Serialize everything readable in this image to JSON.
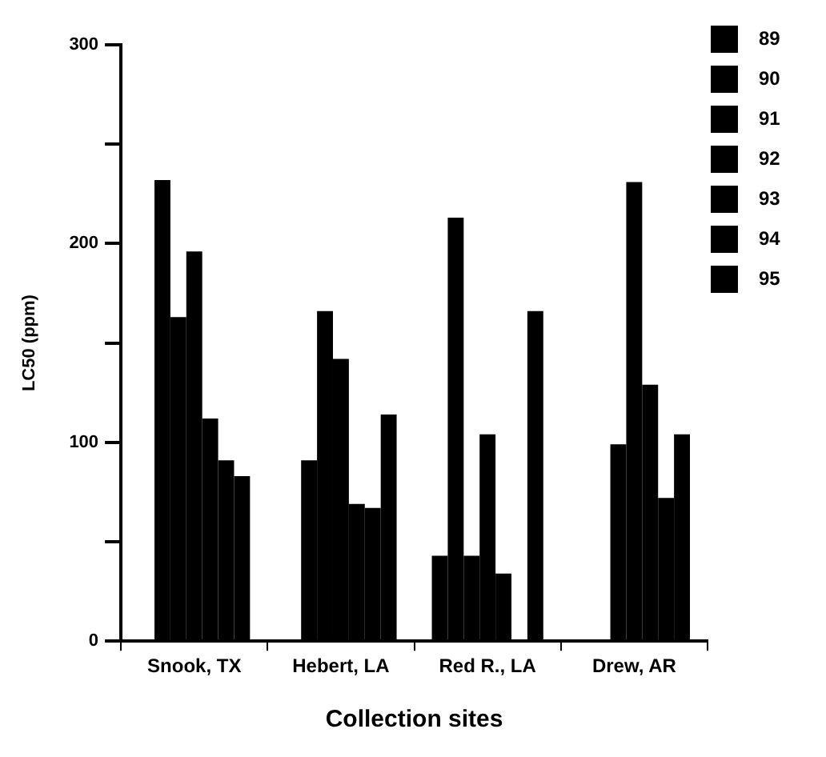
{
  "chart_data": {
    "type": "bar",
    "xlabel": "Collection sites",
    "ylabel": "LC50 (ppm)",
    "categories": [
      "Snook, TX",
      "Hebert, LA",
      "Red R., LA",
      "Drew, AR"
    ],
    "series": [
      {
        "name": "89",
        "color": "#000000",
        "values": [
          null,
          null,
          43,
          null
        ]
      },
      {
        "name": "90",
        "color": "#000000",
        "values": [
          232,
          91,
          213,
          null
        ]
      },
      {
        "name": "91",
        "color": "#000000",
        "values": [
          163,
          166,
          43,
          99
        ]
      },
      {
        "name": "92",
        "color": "#000000",
        "values": [
          196,
          142,
          104,
          231
        ]
      },
      {
        "name": "93",
        "color": "#000000",
        "values": [
          112,
          69,
          34,
          129
        ]
      },
      {
        "name": "94",
        "color": "#000000",
        "values": [
          91,
          67,
          null,
          72
        ]
      },
      {
        "name": "95",
        "color": "#000000",
        "values": [
          83,
          114,
          166,
          104
        ]
      }
    ],
    "ylim": [
      0,
      300
    ],
    "yticks": [
      0,
      {
        "value": 50,
        "label": null
      },
      100,
      {
        "value": 150,
        "label": null
      },
      200,
      {
        "value": 250,
        "label": null
      },
      300
    ],
    "grid": false,
    "legend": "top right"
  }
}
